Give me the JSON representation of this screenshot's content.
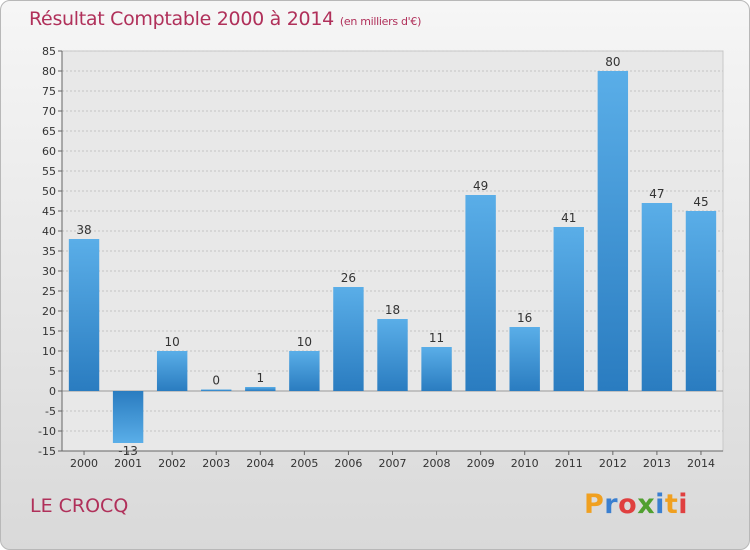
{
  "chart_data": {
    "type": "bar",
    "title": "Résultat Comptable 2000 à 2014",
    "subtitle": "(en milliers d'€)",
    "categories": [
      "2000",
      "2001",
      "2002",
      "2003",
      "2004",
      "2005",
      "2006",
      "2007",
      "2008",
      "2009",
      "2010",
      "2011",
      "2012",
      "2013",
      "2014"
    ],
    "values": [
      38,
      -13,
      10,
      0,
      1,
      10,
      26,
      18,
      11,
      49,
      16,
      41,
      80,
      47,
      45
    ],
    "value_labels": [
      "38",
      "-13",
      "10",
      "0",
      "1",
      "10",
      "26",
      "18",
      "11",
      "49",
      "16",
      "41",
      "80",
      "47",
      "45"
    ],
    "ylim": [
      -15,
      85
    ],
    "yticks": [
      "-15",
      "-10",
      "-5",
      "0",
      "5",
      "10",
      "15",
      "20",
      "25",
      "30",
      "35",
      "40",
      "45",
      "50",
      "55",
      "60",
      "65",
      "70",
      "75",
      "80",
      "85"
    ],
    "grid": true,
    "xlabel": "",
    "ylabel": "",
    "bar_color": "#3a8fd0"
  },
  "footer": {
    "place": "LE CROCQ",
    "logo": [
      "P",
      "r",
      "o",
      "x",
      "i",
      "t",
      "i"
    ],
    "logo_colors": [
      "#f0a020",
      "#3a7fd0",
      "#e04040",
      "#50a030",
      "#3a7fd0",
      "#f0a020",
      "#e04040"
    ]
  }
}
